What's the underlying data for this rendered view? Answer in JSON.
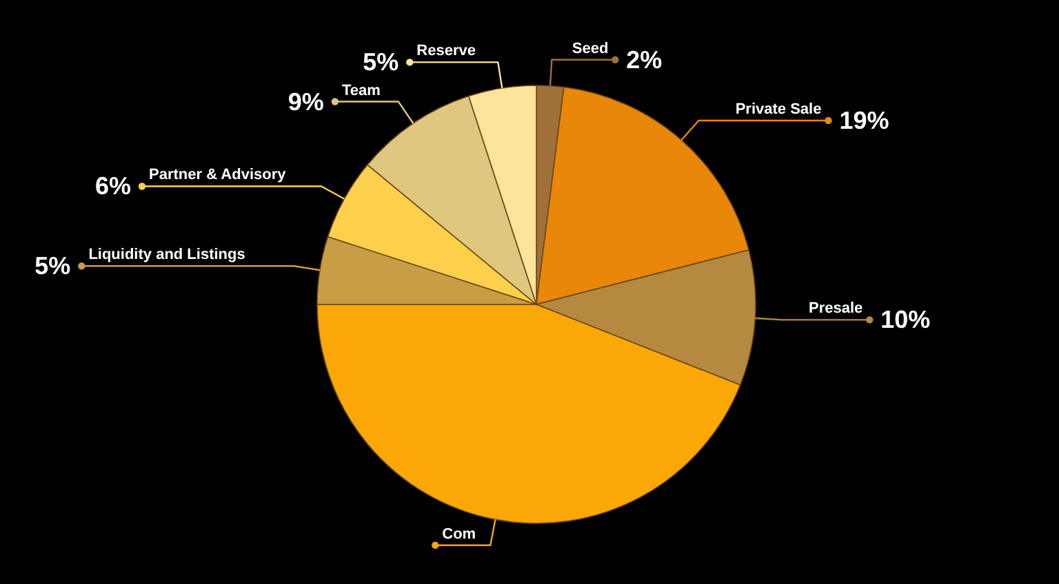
{
  "chart_data": {
    "type": "pie",
    "categories": [
      "Seed",
      "Private Sale",
      "Presale",
      "Com",
      "Liquidity and Listings",
      "Partner & Advisory",
      "Team",
      "Reserve"
    ],
    "values": [
      2,
      19,
      10,
      44,
      5,
      6,
      9,
      5
    ],
    "colors": [
      "#a0703a",
      "#e8870a",
      "#b5893f",
      "#fba706",
      "#c99d45",
      "#fdd04c",
      "#e0c77f",
      "#fee49b"
    ],
    "value_labels": [
      "2%",
      "19%",
      "10%",
      null,
      "5%",
      "6%",
      "9%",
      "5%"
    ]
  }
}
